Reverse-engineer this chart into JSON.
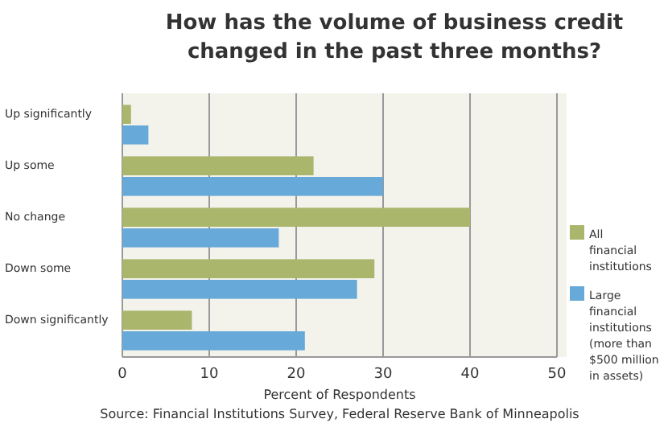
{
  "chart_data": {
    "type": "bar",
    "orientation": "horizontal",
    "title": "How has the volume of business credit changed in the past three months?",
    "xlabel": "Percent of Respondents",
    "annotations": [
      "Source: Financial Institutions Survey, Federal Reserve Bank of Minneapolis"
    ],
    "categories": [
      "Up significantly",
      "Up some",
      "No change",
      "Down some",
      "Down significantly"
    ],
    "series": [
      {
        "name": "All financial institutions",
        "color": "#a9b66c",
        "values": [
          1,
          22,
          40,
          29,
          8
        ]
      },
      {
        "name": "Large financial institutions (more than $500 million in assets)",
        "color": "#67a9d8",
        "values": [
          3,
          30,
          18,
          27,
          21
        ]
      }
    ],
    "xlim": [
      0,
      50
    ],
    "xticks": [
      0,
      10,
      20,
      30,
      40,
      50
    ],
    "grid": "x",
    "legend": "right"
  }
}
